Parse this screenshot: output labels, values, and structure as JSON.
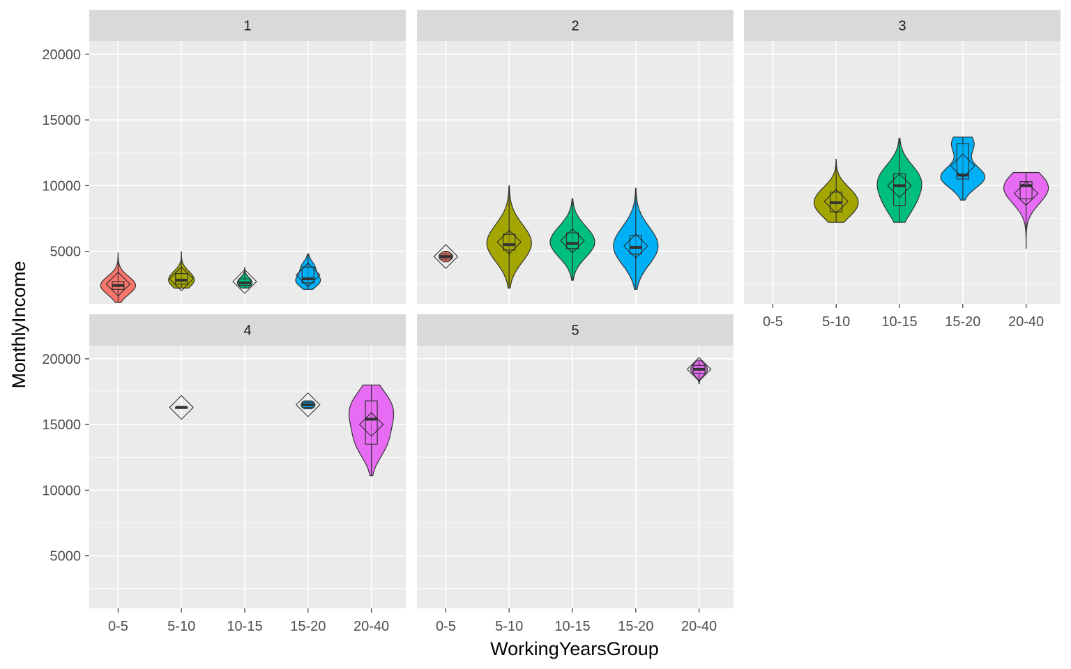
{
  "chart_data": {
    "type": "violin",
    "xlabel": "WorkingYearsGroup",
    "ylabel": "MonthlyIncome",
    "categories": [
      "0-5",
      "5-10",
      "10-15",
      "15-20",
      "20-40"
    ],
    "y_ticks": [
      "5000",
      "10000",
      "15000",
      "20000"
    ],
    "ylim": [
      1000,
      21000
    ],
    "colors": [
      "#F8766D",
      "#A3A500",
      "#00BF7D",
      "#00B0F6",
      "#E76BF3"
    ],
    "facets": [
      {
        "label": "1",
        "groups": [
          {
            "category": "0-5",
            "min": 1100,
            "q1": 2100,
            "median": 2400,
            "q3": 2700,
            "max": 4900,
            "mean": 2500
          },
          {
            "category": "5-10",
            "min": 2200,
            "q1": 2500,
            "median": 2800,
            "q3": 3300,
            "max": 5000,
            "mean": 2900
          },
          {
            "category": "10-15",
            "min": 2200,
            "q1": 2400,
            "median": 2600,
            "q3": 2900,
            "max": 3800,
            "mean": 2700
          },
          {
            "category": "15-20",
            "min": 2100,
            "q1": 2600,
            "median": 2900,
            "q3": 3800,
            "max": 4800,
            "mean": 3200
          }
        ]
      },
      {
        "label": "2",
        "groups": [
          {
            "category": "0-5",
            "min": 4200,
            "q1": 4400,
            "median": 4600,
            "q3": 4800,
            "max": 5000,
            "mean": 4600
          },
          {
            "category": "5-10",
            "min": 2200,
            "q1": 5100,
            "median": 5500,
            "q3": 6300,
            "max": 10000,
            "mean": 5700
          },
          {
            "category": "10-15",
            "min": 2800,
            "q1": 5200,
            "median": 5600,
            "q3": 6400,
            "max": 9000,
            "mean": 5800
          },
          {
            "category": "15-20",
            "min": 2100,
            "q1": 4800,
            "median": 5300,
            "q3": 6200,
            "max": 9800,
            "mean": 5400
          }
        ]
      },
      {
        "label": "3",
        "groups": [
          {
            "category": "5-10",
            "min": 7200,
            "q1": 8000,
            "median": 8700,
            "q3": 9500,
            "max": 12000,
            "mean": 8800
          },
          {
            "category": "10-15",
            "min": 7200,
            "q1": 8500,
            "median": 10000,
            "q3": 10900,
            "max": 13600,
            "mean": 10000
          },
          {
            "category": "15-20",
            "min": 8900,
            "q1": 10500,
            "median": 10800,
            "q3": 13200,
            "max": 13700,
            "mean": 11500
          },
          {
            "category": "20-40",
            "min": 5200,
            "q1": 9000,
            "median": 10000,
            "q3": 10300,
            "max": 11000,
            "mean": 9400
          }
        ]
      },
      {
        "label": "4",
        "groups": [
          {
            "category": "5-10",
            "min": 16300,
            "q1": 16300,
            "median": 16300,
            "q3": 16300,
            "max": 16300,
            "mean": 16300
          },
          {
            "category": "15-20",
            "min": 16200,
            "q1": 16300,
            "median": 16500,
            "q3": 16700,
            "max": 16800,
            "mean": 16500
          },
          {
            "category": "20-40",
            "min": 11100,
            "q1": 13500,
            "median": 15400,
            "q3": 16800,
            "max": 18000,
            "mean": 15000
          }
        ]
      },
      {
        "label": "5",
        "groups": [
          {
            "category": "20-40",
            "min": 18100,
            "q1": 18900,
            "median": 19200,
            "q3": 19500,
            "max": 19900,
            "mean": 19200
          }
        ]
      }
    ]
  }
}
